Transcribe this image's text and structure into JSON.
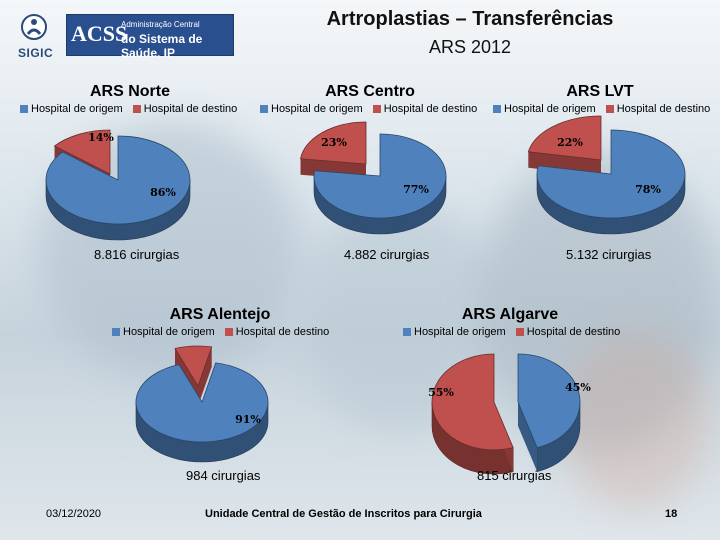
{
  "header": {
    "title": "Artroplastias – Transferências",
    "subtitle": "ARS 2012",
    "logo_sigic": "SIGIC",
    "logo_acss": "ACSS",
    "logo_acss_line1": "Administração Central",
    "logo_acss_line2": "do Sistema de Saúde, IP"
  },
  "colors": {
    "origem": "#4f81bd",
    "destino": "#c0504d"
  },
  "chart_data": [
    {
      "type": "pie",
      "title": "ARS Norte",
      "legend": [
        "Hospital de origem",
        "Hospital de destino"
      ],
      "values": [
        86,
        14
      ],
      "labels": [
        "86%",
        "14%"
      ],
      "note": "8.816 cirurgias"
    },
    {
      "type": "pie",
      "title": "ARS Centro",
      "legend": [
        "Hospital de origem",
        "Hospital de destino"
      ],
      "values": [
        77,
        23
      ],
      "labels": [
        "77%",
        "23%"
      ],
      "note": "4.882 cirurgias"
    },
    {
      "type": "pie",
      "title": "ARS LVT",
      "legend": [
        "Hospital de origem",
        "Hospital de destino"
      ],
      "values": [
        78,
        22
      ],
      "labels": [
        "78%",
        "22%"
      ],
      "note": "5.132 cirurgias"
    },
    {
      "type": "pie",
      "title": "ARS Alentejo",
      "legend": [
        "Hospital de origem",
        "Hospital de destino"
      ],
      "values": [
        91,
        9
      ],
      "labels": [
        "91%",
        ""
      ],
      "note": "984 cirurgias"
    },
    {
      "type": "pie",
      "title": "ARS Algarve",
      "legend": [
        "Hospital de origem",
        "Hospital de destino"
      ],
      "values": [
        45,
        55
      ],
      "labels": [
        "45%",
        "55%"
      ],
      "note": "815 cirurgias"
    }
  ],
  "footer": {
    "date": "03/12/2020",
    "org": "Unidade Central de Gestão de Inscritos para Cirurgia",
    "page": "18"
  }
}
